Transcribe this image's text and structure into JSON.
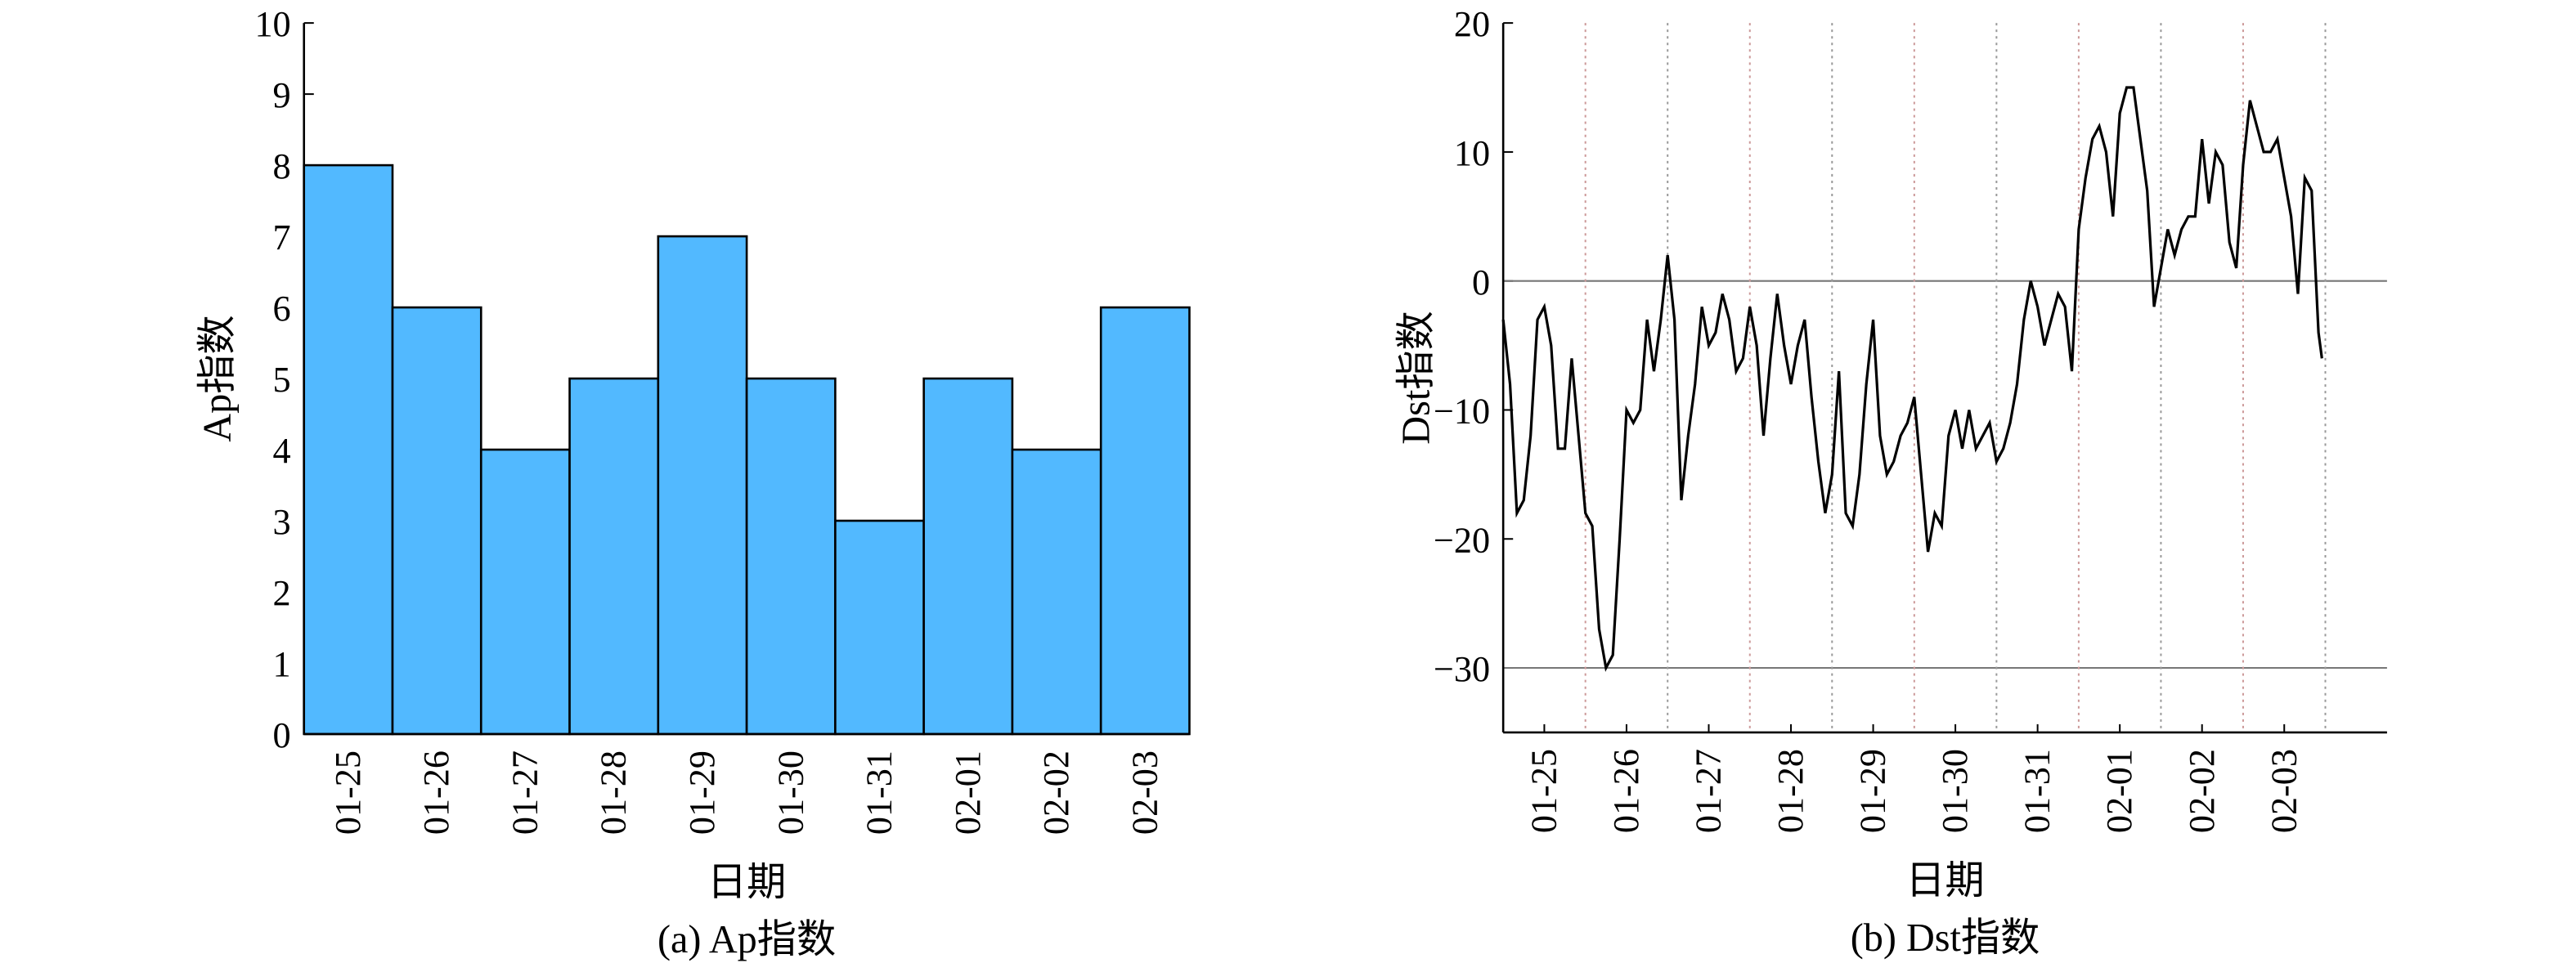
{
  "chart_data": [
    {
      "type": "bar",
      "caption": "(a) Ap指数",
      "xlabel": "日期",
      "ylabel": "Ap指数",
      "categories": [
        "01-25",
        "01-26",
        "01-27",
        "01-28",
        "01-29",
        "01-30",
        "01-31",
        "02-01",
        "02-02",
        "02-03"
      ],
      "values": [
        8,
        6,
        4,
        5,
        7,
        5,
        3,
        5,
        4,
        6
      ],
      "color": "#52b9ff",
      "ylim": [
        0,
        10
      ],
      "yticks": [
        0,
        1,
        2,
        3,
        4,
        5,
        6,
        7,
        8,
        9,
        10
      ]
    },
    {
      "type": "line",
      "caption": "(b) Dst指数",
      "xlabel": "日期",
      "ylabel": "Dst指数",
      "x": [
        0,
        2,
        4,
        6,
        8,
        10,
        12,
        14,
        16,
        18,
        20,
        22,
        24,
        26,
        28,
        30,
        32,
        34,
        36,
        38,
        40,
        42,
        44,
        46,
        48,
        50,
        52,
        54,
        56,
        58,
        60,
        62,
        64,
        66,
        68,
        70,
        72,
        74,
        76,
        78,
        80,
        82,
        84,
        86,
        88,
        90,
        92,
        94,
        96,
        98,
        100,
        102,
        104,
        106,
        108,
        110,
        112,
        114,
        116,
        118,
        120,
        122,
        124,
        126,
        128,
        130,
        132,
        134,
        136,
        138,
        140,
        142,
        144,
        146,
        148,
        150,
        152,
        154,
        156,
        158,
        160,
        162,
        164,
        166,
        168,
        170,
        172,
        174,
        176,
        178,
        180,
        182,
        184,
        186,
        188,
        190,
        192,
        194,
        196,
        198,
        200,
        202,
        204,
        206,
        208,
        210,
        212,
        214,
        216,
        218,
        220,
        222,
        224,
        226,
        228,
        230,
        232,
        234,
        236,
        238,
        239
      ],
      "series": [
        {
          "name": "Dst",
          "color": "#000000",
          "values": [
            -3,
            -8,
            -18,
            -17,
            -12,
            -3,
            -2,
            -5,
            -13,
            -13,
            -6,
            -12,
            -18,
            -19,
            -27,
            -30,
            -29,
            -20,
            -10,
            -11,
            -10,
            -3,
            -7,
            -3,
            2,
            -3,
            -17,
            -12,
            -8,
            -2,
            -5,
            -4,
            -1,
            -3,
            -7,
            -6,
            -2,
            -5,
            -12,
            -6,
            -1,
            -5,
            -8,
            -5,
            -3,
            -9,
            -14,
            -18,
            -15,
            -7,
            -18,
            -19,
            -15,
            -8,
            -3,
            -12,
            -15,
            -14,
            -12,
            -11,
            -9,
            -15,
            -21,
            -18,
            -19,
            -12,
            -10,
            -13,
            -10,
            -13,
            -12,
            -11,
            -14,
            -13,
            -11,
            -8,
            -3,
            0,
            -2,
            -5,
            -3,
            -1,
            -2,
            -7,
            4,
            8,
            11,
            12,
            10,
            5,
            13,
            15,
            15,
            11,
            7,
            -2,
            1,
            4,
            2,
            4,
            5,
            5,
            11,
            6,
            10,
            9,
            3,
            1,
            9,
            14,
            12,
            10,
            10,
            11,
            8,
            5,
            -1,
            8,
            7,
            -4,
            -6
          ]
        }
      ],
      "xlim": [
        0,
        258
      ],
      "xticks": [
        {
          "value": 12,
          "label": "01-25"
        },
        {
          "value": 36,
          "label": "01-26"
        },
        {
          "value": 60,
          "label": "01-27"
        },
        {
          "value": 84,
          "label": "01-28"
        },
        {
          "value": 108,
          "label": "01-29"
        },
        {
          "value": 132,
          "label": "01-30"
        },
        {
          "value": 156,
          "label": "01-31"
        },
        {
          "value": 180,
          "label": "02-01"
        },
        {
          "value": 204,
          "label": "02-02"
        },
        {
          "value": 228,
          "label": "02-03"
        }
      ],
      "xgrid": [
        24,
        48,
        72,
        96,
        120,
        144,
        168,
        192,
        216,
        240
      ],
      "hlines": [
        0,
        -30
      ],
      "ylim": [
        -35,
        20
      ],
      "yticks": [
        {
          "value": -30,
          "label": "−30"
        },
        {
          "value": -20,
          "label": "−20"
        },
        {
          "value": -10,
          "label": "−10"
        },
        0,
        10,
        20
      ]
    }
  ]
}
